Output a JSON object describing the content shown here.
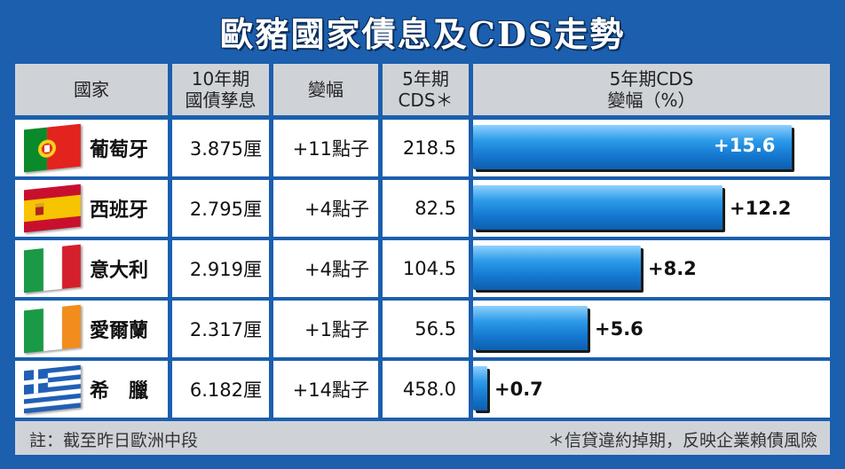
{
  "title": "歐豬國家債息及CDS走勢",
  "header": {
    "country": "國家",
    "yield_line1": "10年期",
    "yield_line2": "國債孳息",
    "change": "變幅",
    "cds_line1": "5年期",
    "cds_line2": "CDS＊",
    "cds_change_line1": "5年期CDS",
    "cds_change_line2": "變幅（%）"
  },
  "rows": [
    {
      "country": "葡萄牙",
      "flag": "portugal-flag-icon",
      "yield": "3.875厘",
      "change": "+11點子",
      "cds": "218.5",
      "cds_change_label": "+15.6"
    },
    {
      "country": "西班牙",
      "flag": "spain-flag-icon",
      "yield": "2.795厘",
      "change": "+4點子",
      "cds": "82.5",
      "cds_change_label": "+12.2"
    },
    {
      "country": "意大利",
      "flag": "italy-flag-icon",
      "yield": "2.919厘",
      "change": "+4點子",
      "cds": "104.5",
      "cds_change_label": "+8.2"
    },
    {
      "country": "愛爾蘭",
      "flag": "ireland-flag-icon",
      "yield": "2.317厘",
      "change": "+1點子",
      "cds": "56.5",
      "cds_change_label": "+5.6"
    },
    {
      "country": "希　臘",
      "flag": "greece-flag-icon",
      "yield": "6.182厘",
      "change": "+14點子",
      "cds": "458.0",
      "cds_change_label": "+0.7"
    }
  ],
  "chart_data": {
    "type": "bar",
    "categories": [
      "葡萄牙",
      "西班牙",
      "意大利",
      "愛爾蘭",
      "希臘"
    ],
    "values": [
      15.6,
      12.2,
      8.2,
      5.6,
      0.7
    ],
    "value_labels": [
      "+15.6",
      "+12.2",
      "+8.2",
      "+5.6",
      "+0.7"
    ],
    "orientation": "horizontal",
    "xlim": [
      0,
      16
    ],
    "grid": false,
    "color": "#1477cf"
  },
  "footer": {
    "note": "註：截至昨日歐洲中段",
    "asterisk_note": "＊信貸違約掉期，反映企業賴債風險"
  },
  "colors": {
    "background": "#1b5fae",
    "header": "#cfd3d8",
    "bar": "#1477cf"
  }
}
